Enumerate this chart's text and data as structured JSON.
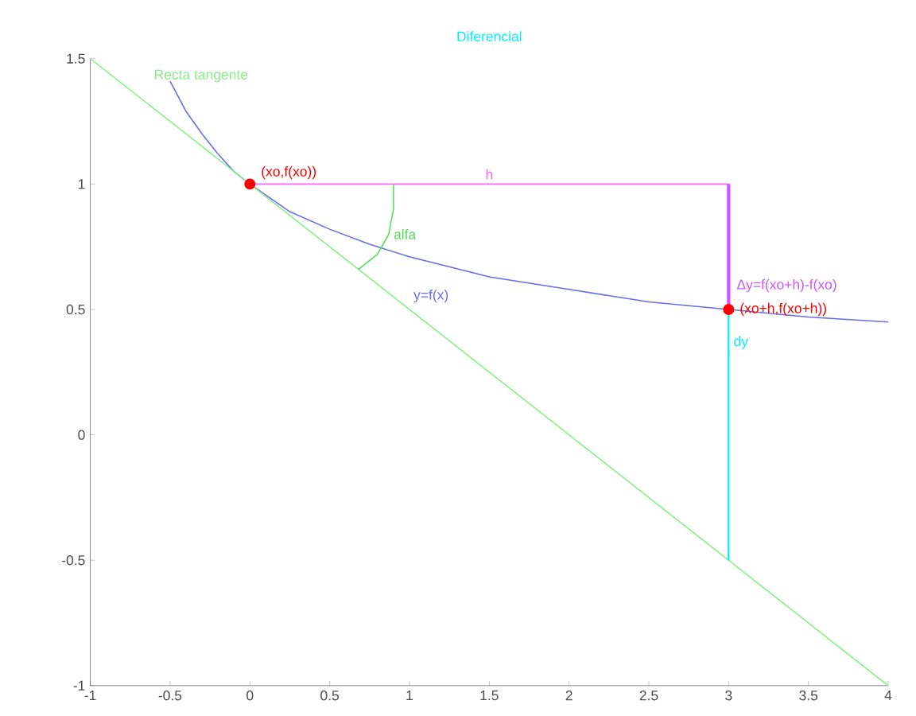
{
  "chart_data": {
    "type": "line",
    "title": "Diferencial",
    "xlim": [
      -1,
      4
    ],
    "ylim": [
      -1,
      1.5
    ],
    "xticks": [
      -1,
      -0.5,
      0,
      0.5,
      1,
      1.5,
      2,
      2.5,
      3,
      3.5,
      4
    ],
    "yticks": [
      -1,
      -0.5,
      0,
      0.5,
      1,
      1.5
    ],
    "series": [
      {
        "name": "y=f(x)",
        "color": "#6a6aee",
        "marker": "none",
        "x": [
          -0.5,
          -0.4,
          -0.3,
          -0.2,
          -0.1,
          0,
          0.25,
          0.5,
          0.75,
          1,
          1.5,
          2,
          2.5,
          3,
          3.5,
          4
        ],
        "values": [
          1.41,
          1.29,
          1.2,
          1.12,
          1.05,
          1,
          0.89,
          0.82,
          0.76,
          0.71,
          0.63,
          0.58,
          0.53,
          0.5,
          0.47,
          0.45
        ]
      },
      {
        "name": "Recta tangente",
        "color": "#88ee88",
        "marker": "none",
        "x": [
          -1,
          4
        ],
        "values": [
          1.5,
          -1
        ]
      },
      {
        "name": "h",
        "color": "#ff66ff",
        "marker": "none",
        "x": [
          0,
          3
        ],
        "values": [
          1,
          1
        ]
      },
      {
        "name": "alfa",
        "color": "#55dd55",
        "marker": "none",
        "x": [
          0.9,
          0.9,
          0.87,
          0.8,
          0.68
        ],
        "values": [
          1,
          0.9,
          0.8,
          0.72,
          0.66
        ]
      },
      {
        "name": "Δy=f(xo+h)-f(xo)",
        "color": "#cc55ff",
        "marker": "none",
        "x": [
          3,
          3
        ],
        "values": [
          1,
          0.5
        ]
      },
      {
        "name": "dy",
        "color": "#00eeff",
        "marker": "none",
        "x": [
          3,
          3
        ],
        "values": [
          0.5,
          -0.5
        ]
      },
      {
        "color": "#ff0000",
        "type": "scatter",
        "marker": "circle",
        "x": [
          0,
          3
        ],
        "values": [
          1,
          0.5
        ],
        "value_labels": [
          "(xo,f(xo))",
          "(xo+h,f(xo+h))"
        ]
      }
    ]
  }
}
